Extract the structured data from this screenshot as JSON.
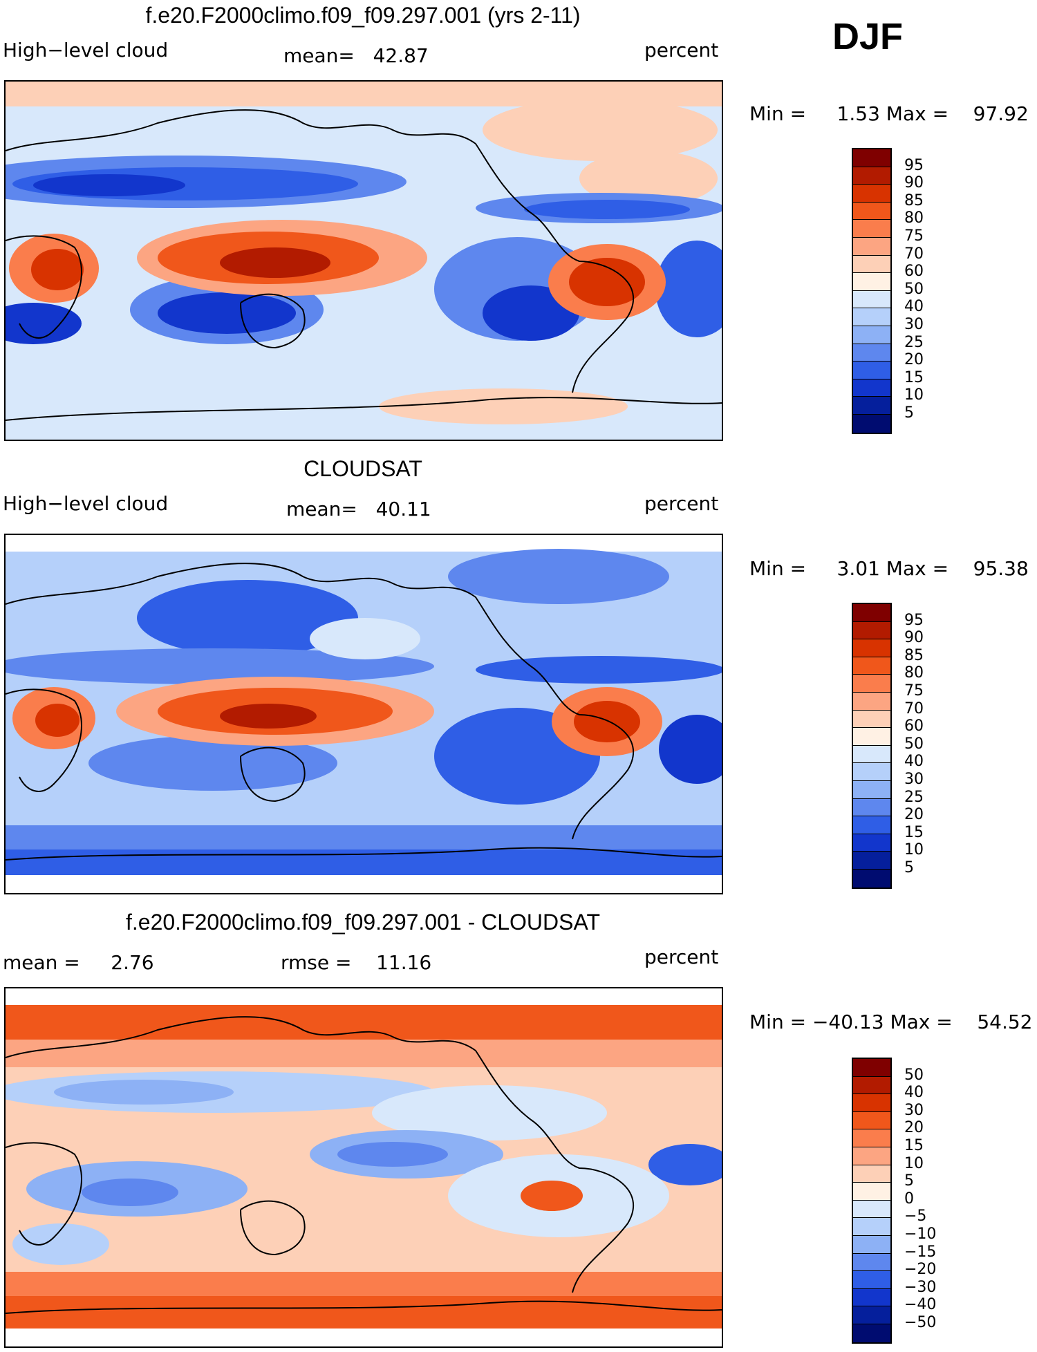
{
  "season": "DJF",
  "panels": [
    {
      "title": "f.e20.F2000climo.f09_f09.297.001 (yrs 2-11)",
      "left_label": "High−level cloud",
      "mean_text": "mean=   42.87",
      "units": "percent",
      "minmax_text": "Min =     1.53 Max =    97.92",
      "colorbar": {
        "levels": [
          "95",
          "90",
          "85",
          "80",
          "75",
          "70",
          "60",
          "50",
          "40",
          "30",
          "25",
          "20",
          "15",
          "10",
          "5"
        ],
        "colors": [
          "#7f0000",
          "#b21b00",
          "#d83300",
          "#f0571b",
          "#fa7d4c",
          "#fca582",
          "#fdd0b7",
          "#fff1e4",
          "#d8e8fb",
          "#b5d0fa",
          "#8db1f5",
          "#5e87ee",
          "#2f5ee6",
          "#1236cc",
          "#051f9c",
          "#000c70"
        ]
      }
    },
    {
      "title": "CLOUDSAT",
      "left_label": "High−level cloud",
      "mean_text": "mean=   40.11",
      "units": "percent",
      "minmax_text": "Min =     3.01 Max =    95.38",
      "colorbar": {
        "levels": [
          "95",
          "90",
          "85",
          "80",
          "75",
          "70",
          "60",
          "50",
          "40",
          "30",
          "25",
          "20",
          "15",
          "10",
          "5"
        ],
        "colors": [
          "#7f0000",
          "#b21b00",
          "#d83300",
          "#f0571b",
          "#fa7d4c",
          "#fca582",
          "#fdd0b7",
          "#fff1e4",
          "#d8e8fb",
          "#b5d0fa",
          "#8db1f5",
          "#5e87ee",
          "#2f5ee6",
          "#1236cc",
          "#051f9c",
          "#000c70"
        ]
      }
    },
    {
      "title": "f.e20.F2000climo.f09_f09.297.001 - CLOUDSAT",
      "left_label": "mean =     2.76",
      "mean_text": "rmse =    11.16",
      "units": "percent",
      "minmax_text": "Min = −40.13 Max =    54.52",
      "colorbar": {
        "levels": [
          "50",
          "40",
          "30",
          "20",
          "15",
          "10",
          "5",
          "0",
          "−5",
          "−10",
          "−15",
          "−20",
          "−30",
          "−40",
          "−50"
        ],
        "colors": [
          "#7f0000",
          "#b21b00",
          "#d83300",
          "#f0571b",
          "#fa7d4c",
          "#fca582",
          "#fdd0b7",
          "#fff1e4",
          "#d8e8fb",
          "#b5d0fa",
          "#8db1f5",
          "#5e87ee",
          "#2f5ee6",
          "#1236cc",
          "#051f9c",
          "#000c70"
        ]
      }
    }
  ]
}
